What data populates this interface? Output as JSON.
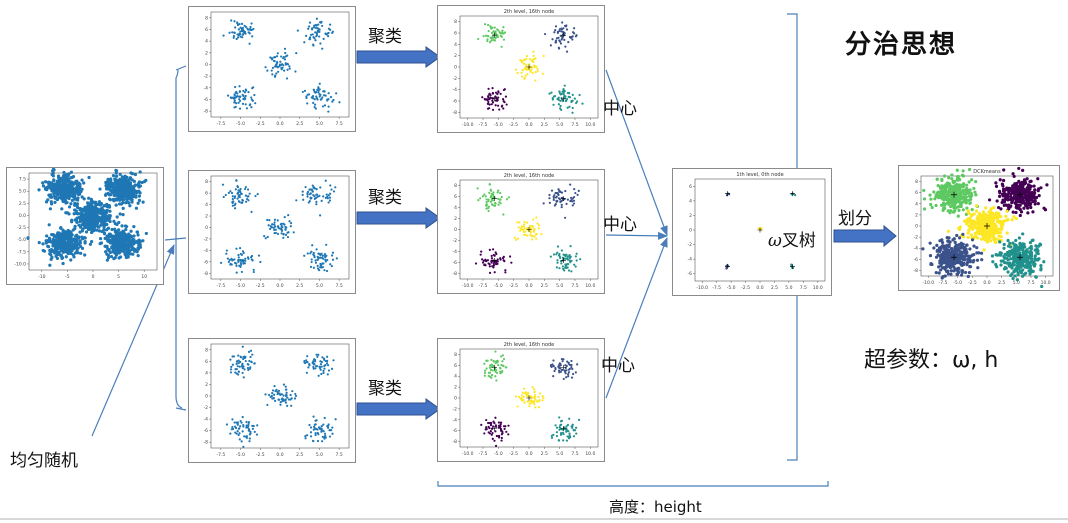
{
  "title": "分治思想",
  "labels": {
    "cluster": "聚类",
    "center": "中心",
    "divide": "划分",
    "tree": "叉树",
    "tree_symbol": "ω",
    "uniform_random": "均匀随机",
    "height": "高度：height",
    "hyperparams": "超参数：ω, h"
  },
  "plot_titles": {
    "level2": "2th level, 16th node",
    "level1": "1th level, 0th node",
    "final": "DCKmeans"
  },
  "colors": {
    "sample_blue": "#1f77b4",
    "purple": "#440154",
    "navy": "#3b528b",
    "teal": "#21918c",
    "green": "#5ec962",
    "yellow": "#fde725",
    "arrow_fill": "#4472c4",
    "line_blue": "#4a7ebb"
  },
  "chart_data": [
    {
      "type": "scatter",
      "role": "full-dataset",
      "cluster_centers": [
        [
          -5,
          5
        ],
        [
          5,
          5
        ],
        [
          0,
          0
        ],
        [
          -5,
          -5
        ],
        [
          5,
          -5
        ]
      ],
      "xticks": [
        "-10",
        "-5",
        "0",
        "5",
        "10"
      ],
      "yticks": [
        "7.5",
        "5.0",
        "2.5",
        "0.0",
        "-2.5",
        "-5.0",
        "-7.5",
        "-10.0"
      ],
      "xlim": [
        -11,
        11
      ],
      "ylim": [
        -10,
        8
      ]
    },
    {
      "type": "scatter",
      "role": "random-subsample",
      "count": 3,
      "cluster_centers": [
        [
          -5,
          5
        ],
        [
          5,
          5
        ],
        [
          0,
          0
        ],
        [
          -5,
          -5
        ],
        [
          5,
          -5
        ]
      ],
      "xticks": [
        "-7.5",
        "-5.0",
        "-2.5",
        "0.0",
        "2.5",
        "5.0",
        "7.5"
      ],
      "yticks": [
        "8",
        "6",
        "4",
        "2",
        "0",
        "-2",
        "-4",
        "-6",
        "-8"
      ],
      "xlim": [
        -9,
        9
      ],
      "ylim": [
        -8,
        8
      ]
    },
    {
      "type": "scatter",
      "role": "clustered-subsample",
      "count": 3,
      "title": "2th level, 16th node",
      "clusters": [
        {
          "center": [
            -5,
            5
          ],
          "color": "#5ec962"
        },
        {
          "center": [
            5,
            5
          ],
          "color": "#3b528b"
        },
        {
          "center": [
            0,
            0
          ],
          "color": "#fde725"
        },
        {
          "center": [
            -5,
            -5
          ],
          "color": "#440154"
        },
        {
          "center": [
            5,
            -5
          ],
          "color": "#21918c"
        }
      ],
      "xticks": [
        "-10.0",
        "-7.5",
        "-5.0",
        "-2.5",
        "0.0",
        "2.5",
        "5.0",
        "7.5",
        "10.0"
      ],
      "yticks": [
        "8",
        "6",
        "4",
        "2",
        "0",
        "-2",
        "-4",
        "-6",
        "-8"
      ],
      "xlim": [
        -10,
        10
      ],
      "ylim": [
        -8,
        8
      ]
    },
    {
      "type": "scatter",
      "role": "centers",
      "title": "1th level, 0th node",
      "points": [
        [
          -5,
          5
        ],
        [
          5,
          5
        ],
        [
          0,
          0
        ],
        [
          -5,
          -5
        ],
        [
          5,
          -5
        ]
      ],
      "xticks": [
        "-10.0",
        "-7.5",
        "-5.0",
        "-2.5",
        "0.0",
        "2.5",
        "5.0",
        "7.5",
        "10.0"
      ],
      "yticks": [
        "6",
        "4",
        "2",
        "0",
        "-2",
        "-4",
        "-6"
      ],
      "xlim": [
        -10,
        10
      ],
      "ylim": [
        -7,
        7
      ]
    },
    {
      "type": "scatter",
      "role": "final-clustering",
      "title": "DCKmeans",
      "clusters": [
        {
          "center": [
            -5,
            5
          ],
          "color": "#5ec962"
        },
        {
          "center": [
            5,
            5
          ],
          "color": "#440154"
        },
        {
          "center": [
            0,
            0
          ],
          "color": "#fde725"
        },
        {
          "center": [
            -5,
            -5
          ],
          "color": "#3b528b"
        },
        {
          "center": [
            5,
            -5
          ],
          "color": "#21918c"
        }
      ],
      "xticks": [
        "-10.0",
        "-7.5",
        "-5.0",
        "-2.5",
        "0.0",
        "2.5",
        "5.0",
        "7.5",
        "10.0"
      ],
      "yticks": [
        "8",
        "6",
        "4",
        "2",
        "0",
        "-2",
        "-4",
        "-6",
        "-8"
      ],
      "xlim": [
        -10,
        10
      ],
      "ylim": [
        -8,
        8
      ]
    }
  ]
}
